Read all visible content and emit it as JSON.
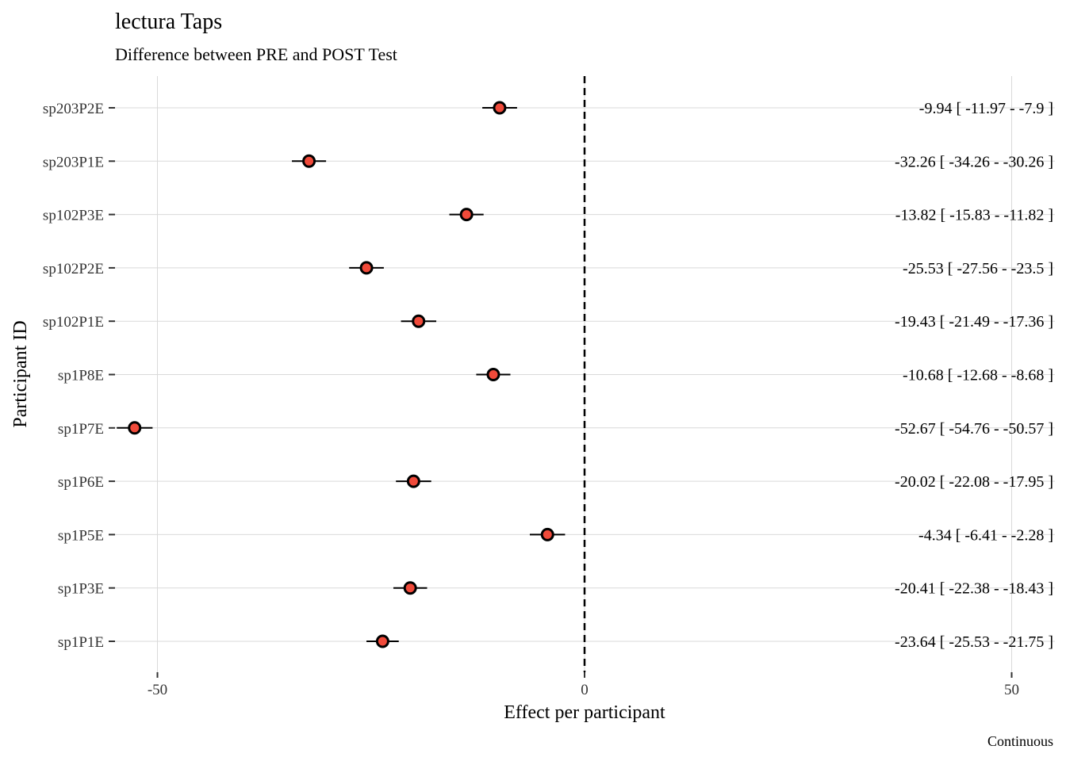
{
  "chart_data": {
    "type": "forest-dot",
    "title": "lectura Taps",
    "subtitle": "Difference between PRE and POST Test",
    "xlabel": "Effect per participant",
    "ylabel": "Participant ID",
    "caption": "Continuous",
    "xlim": [
      -110,
      110
    ],
    "x_ticks": [
      -100,
      -50,
      0,
      50,
      100
    ],
    "reference_line": 0,
    "grid": true,
    "colors": {
      "point_fill": "#F04A3A",
      "point_stroke": "#000000",
      "grid": "#D9D9D9",
      "reference": "#000000"
    },
    "categories": [
      "sp203P2E",
      "sp203P1E",
      "sp102P3E",
      "sp102P2E",
      "sp102P1E",
      "sp1P8E",
      "sp1P7E",
      "sp1P6E",
      "sp1P5E",
      "sp1P3E",
      "sp1P1E"
    ],
    "values": [
      -9.94,
      -32.26,
      -13.82,
      -25.53,
      -19.43,
      -10.68,
      -52.67,
      -20.02,
      -4.34,
      -20.41,
      -23.64
    ],
    "lower": [
      -11.97,
      -34.26,
      -15.83,
      -27.56,
      -21.49,
      -12.68,
      -54.76,
      -22.08,
      -6.41,
      -22.38,
      -25.53
    ],
    "upper": [
      -7.9,
      -30.26,
      -11.82,
      -23.5,
      -17.36,
      -8.68,
      -50.57,
      -17.95,
      -2.28,
      -18.43,
      -21.75
    ],
    "annotations": [
      "-9.94 [ -11.97 - -7.9 ]",
      "-32.26 [ -34.26 - -30.26 ]",
      "-13.82 [ -15.83 - -11.82 ]",
      "-25.53 [ -27.56 - -23.5 ]",
      "-19.43 [ -21.49 - -17.36 ]",
      "-10.68 [ -12.68 - -8.68 ]",
      "-52.67 [ -54.76 - -50.57 ]",
      "-20.02 [ -22.08 - -17.95 ]",
      "-4.34 [ -6.41 - -2.28 ]",
      "-20.41 [ -22.38 - -18.43 ]",
      "-23.64 [ -25.53 - -21.75 ]"
    ]
  }
}
